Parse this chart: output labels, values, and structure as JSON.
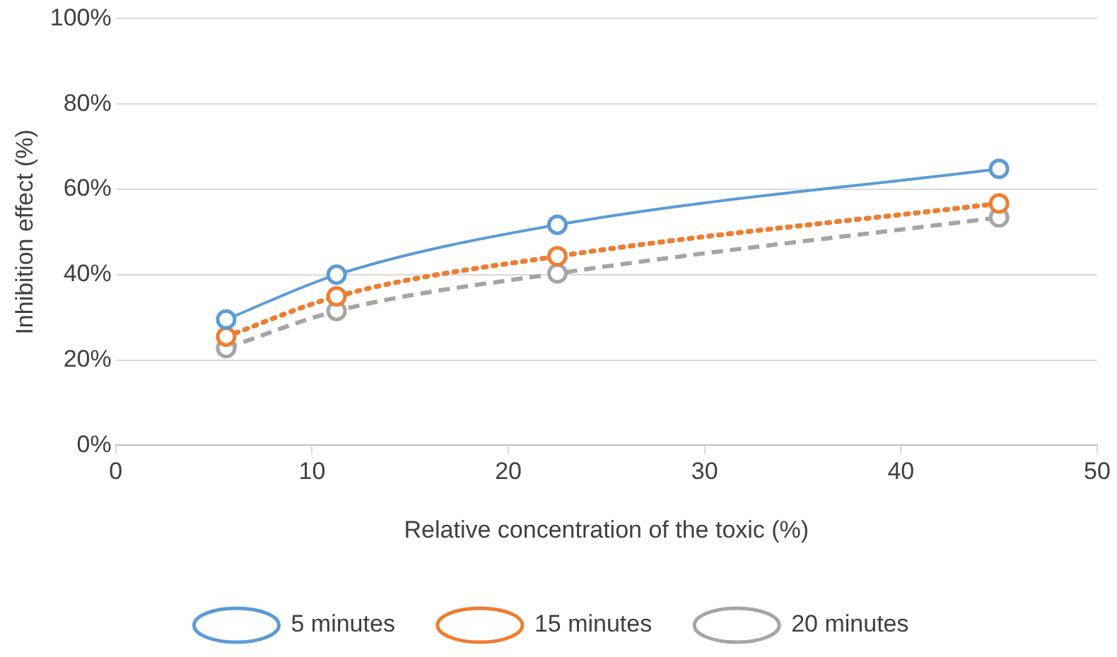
{
  "chart_data": {
    "type": "line",
    "xlabel": "Relative concentration of the toxic (%)",
    "ylabel": "Inhibition effect (%)",
    "x": [
      5.625,
      11.25,
      22.5,
      45
    ],
    "series": [
      {
        "name": "5 minutes",
        "color": "#5b9bd5",
        "line_style": "solid",
        "values": [
          29.5,
          40,
          51.7,
          64.8
        ]
      },
      {
        "name": "15 minutes",
        "color": "#ed7d31",
        "line_style": "dotted",
        "values": [
          25.5,
          34.9,
          44.3,
          56.7
        ]
      },
      {
        "name": "20 minutes",
        "color": "#a5a5a5",
        "line_style": "dashed",
        "values": [
          22.8,
          31.5,
          40.3,
          53.4
        ]
      }
    ],
    "xlim": [
      0,
      50
    ],
    "xticks": [
      0,
      10,
      20,
      30,
      40,
      50
    ],
    "ylim": [
      0,
      100
    ],
    "yticks": [
      {
        "value": 0,
        "label": "0%"
      },
      {
        "value": 20,
        "label": "20%"
      },
      {
        "value": 40,
        "label": "40%"
      },
      {
        "value": 60,
        "label": "60%"
      },
      {
        "value": 80,
        "label": "80%"
      },
      {
        "value": 100,
        "label": "100%"
      }
    ],
    "grid": "y",
    "legend": "bottom",
    "marker": "circle"
  }
}
